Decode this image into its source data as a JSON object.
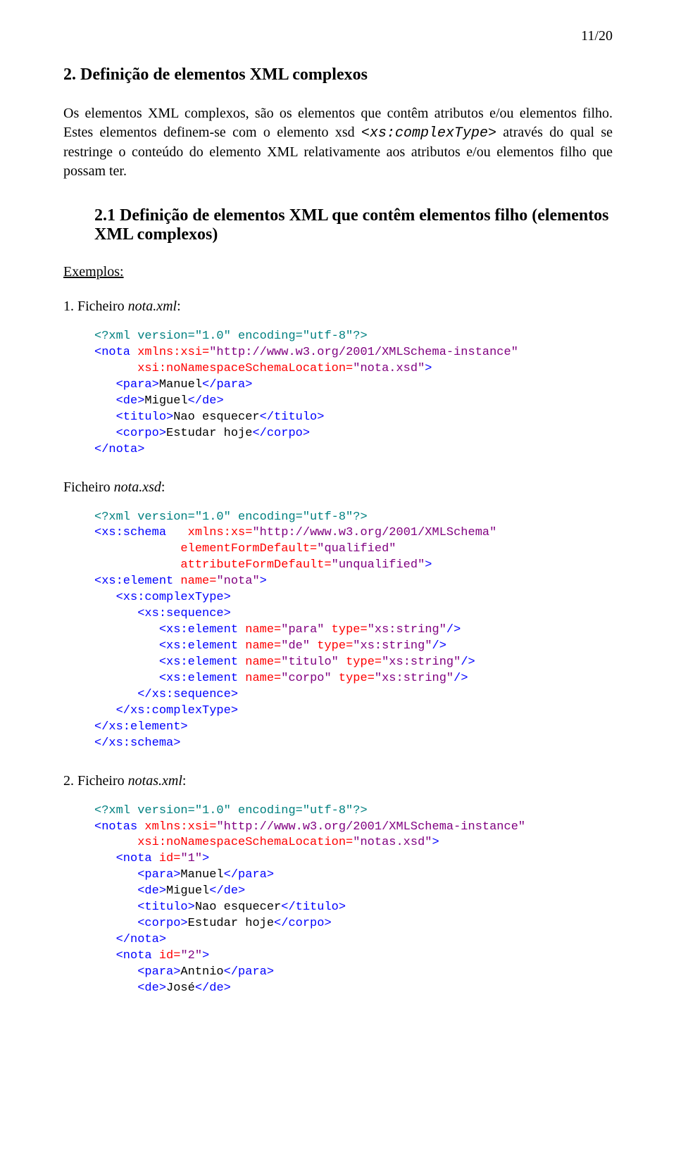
{
  "pageNumber": "11/20",
  "section": {
    "number": "2.",
    "title": "Definição de elementos XML complexos",
    "para_part1": "Os elementos XML complexos, são os elementos que contêm atributos e/ou elementos filho. Estes elementos definem-se com o elemento xsd ",
    "para_code": "<xs:complexType>",
    "para_part2": " através do qual se restringe o conteúdo do elemento XML relativamente aos atributos e/ou elementos filho que possam ter."
  },
  "subsection": {
    "number": "2.1",
    "title": "Definição de elementos XML que contêm elementos filho (elementos XML complexos)",
    "examplesLabel": "Exemplos:"
  },
  "example1": {
    "label_prefix": "1. Ficheiro ",
    "label_name": "nota.xml",
    "label_suffix": ":",
    "l1_a": "<?xml version=\"1.0\" encoding=\"utf-8\"?>",
    "l2_a": "<nota",
    "l2_b": " xmlns:xsi=",
    "l2_c": "\"http://www.w3.org/2001/XMLSchema-instance\"",
    "l3_a": "      xsi:noNamespaceSchemaLocation=",
    "l3_b": "\"nota.xsd\"",
    "l3_c": ">",
    "l4_a": "   <para>",
    "l4_b": "Manuel",
    "l4_c": "</para>",
    "l5_a": "   <de>",
    "l5_b": "Miguel",
    "l5_c": "</de>",
    "l6_a": "   <titulo>",
    "l6_b": "Nao esquecer",
    "l6_c": "</titulo>",
    "l7_a": "   <corpo>",
    "l7_b": "Estudar hoje",
    "l7_c": "</corpo>",
    "l8_a": "</nota>"
  },
  "file2": {
    "label_prefix": "Ficheiro ",
    "label_name": "nota.xsd",
    "label_suffix": ":",
    "l1_a": "<?xml version=\"1.0\" encoding=\"utf-8\"?>",
    "l2_a": "<xs:schema",
    "l2_b": "   xmlns:xs=",
    "l2_c": "\"http://www.w3.org/2001/XMLSchema\"",
    "l3_a": "            elementFormDefault=",
    "l3_b": "\"qualified\"",
    "l4_a": "            attributeFormDefault=",
    "l4_b": "\"unqualified\"",
    "l4_c": ">",
    "l5_a": "<xs:element",
    "l5_b": " name=",
    "l5_c": "\"nota\"",
    "l5_d": ">",
    "l6_a": "   <xs:complexType>",
    "l7_a": "      <xs:sequence>",
    "l8_a": "         <xs:element",
    "l8_b": " name=",
    "l8_c": "\"para\"",
    "l8_d": " type=",
    "l8_e": "\"xs:string\"",
    "l8_f": "/>",
    "l9_a": "         <xs:element",
    "l9_b": " name=",
    "l9_c": "\"de\"",
    "l9_d": " type=",
    "l9_e": "\"xs:string\"",
    "l9_f": "/>",
    "l10_a": "         <xs:element",
    "l10_b": " name=",
    "l10_c": "\"titulo\"",
    "l10_d": " type=",
    "l10_e": "\"xs:string\"",
    "l10_f": "/>",
    "l11_a": "         <xs:element",
    "l11_b": " name=",
    "l11_c": "\"corpo\"",
    "l11_d": " type=",
    "l11_e": "\"xs:string\"",
    "l11_f": "/>",
    "l12_a": "      </xs:sequence>",
    "l13_a": "   </xs:complexType>",
    "l14_a": "</xs:element>",
    "l15_a": "</xs:schema>"
  },
  "example2": {
    "label_prefix": "2. Ficheiro ",
    "label_name": "notas.xml",
    "label_suffix": ":",
    "l1_a": "<?xml version=\"1.0\" encoding=\"utf-8\"?>",
    "l2_a": "<notas",
    "l2_b": " xmlns:xsi=",
    "l2_c": "\"http://www.w3.org/2001/XMLSchema-instance\"",
    "l3_a": "      xsi:noNamespaceSchemaLocation=",
    "l3_b": "\"notas.xsd\"",
    "l3_c": ">",
    "l4_a": "   <nota",
    "l4_b": " id=",
    "l4_c": "\"1\"",
    "l4_d": ">",
    "l5_a": "      <para>",
    "l5_b": "Manuel",
    "l5_c": "</para>",
    "l6_a": "      <de>",
    "l6_b": "Miguel",
    "l6_c": "</de>",
    "l7_a": "      <titulo>",
    "l7_b": "Nao esquecer",
    "l7_c": "</titulo>",
    "l8_a": "      <corpo>",
    "l8_b": "Estudar hoje",
    "l8_c": "</corpo>",
    "l9_a": "   </nota>",
    "l10_a": "   <nota",
    "l10_b": " id=",
    "l10_c": "\"2\"",
    "l10_d": ">",
    "l11_a": "      <para>",
    "l11_b": "Antnio",
    "l11_c": "</para>",
    "l12_a": "      <de>",
    "l12_b": "José",
    "l12_c": "</de>"
  }
}
